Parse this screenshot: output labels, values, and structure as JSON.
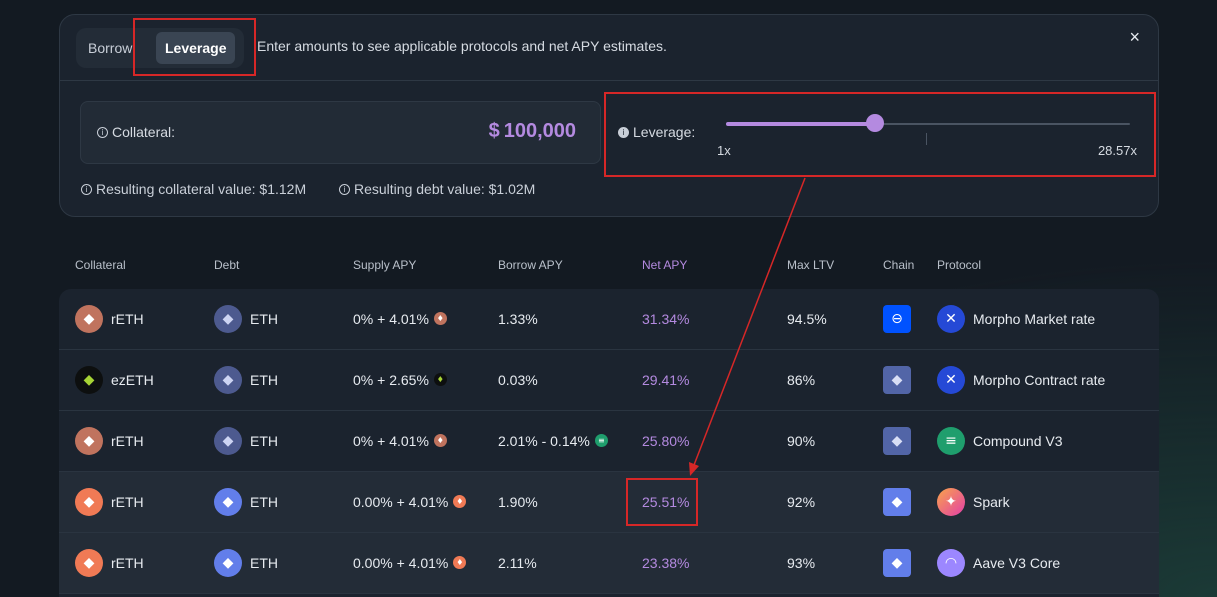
{
  "tabs": [
    {
      "label": "Borrow",
      "active": false
    },
    {
      "label": "Leverage",
      "active": true
    }
  ],
  "hint": "Enter amounts to see applicable protocols and net APY estimates.",
  "close_icon": "×",
  "collateral": {
    "label": "Collateral:",
    "currency": "$",
    "value": "100,000"
  },
  "leverage": {
    "label": "Leverage:",
    "min": "1x",
    "max": "28.57x",
    "level_fraction": 0.37
  },
  "results": {
    "collateral_value": "Resulting collateral value: $1.12M",
    "debt_value": "Resulting debt value: $1.02M"
  },
  "columns": [
    "Collateral",
    "Debt",
    "Supply APY",
    "Borrow APY",
    "Net APY",
    "Max LTV",
    "Chain",
    "Protocol"
  ],
  "rows": [
    {
      "collateral": "rETH",
      "debt": "ETH",
      "supply": "0% + 4.01%",
      "borrow": "1.33%",
      "net": "31.34%",
      "ltv": "94.5%",
      "protocol": "Morpho Market rate"
    },
    {
      "collateral": "ezETH",
      "debt": "ETH",
      "supply": "0% + 2.65%",
      "borrow": "0.03%",
      "net": "29.41%",
      "ltv": "86%",
      "protocol": "Morpho Contract rate"
    },
    {
      "collateral": "rETH",
      "debt": "ETH",
      "supply": "0% + 4.01%",
      "borrow": "2.01% - 0.14%",
      "net": "25.80%",
      "ltv": "90%",
      "protocol": "Compound V3"
    },
    {
      "collateral": "rETH",
      "debt": "ETH",
      "supply": "0.00% + 4.01%",
      "borrow": "1.90%",
      "net": "25.51%",
      "ltv": "92%",
      "protocol": "Spark"
    },
    {
      "collateral": "rETH",
      "debt": "ETH",
      "supply": "0.00% + 4.01%",
      "borrow": "2.11%",
      "net": "23.38%",
      "ltv": "93%",
      "protocol": "Aave V3 Core"
    }
  ]
}
